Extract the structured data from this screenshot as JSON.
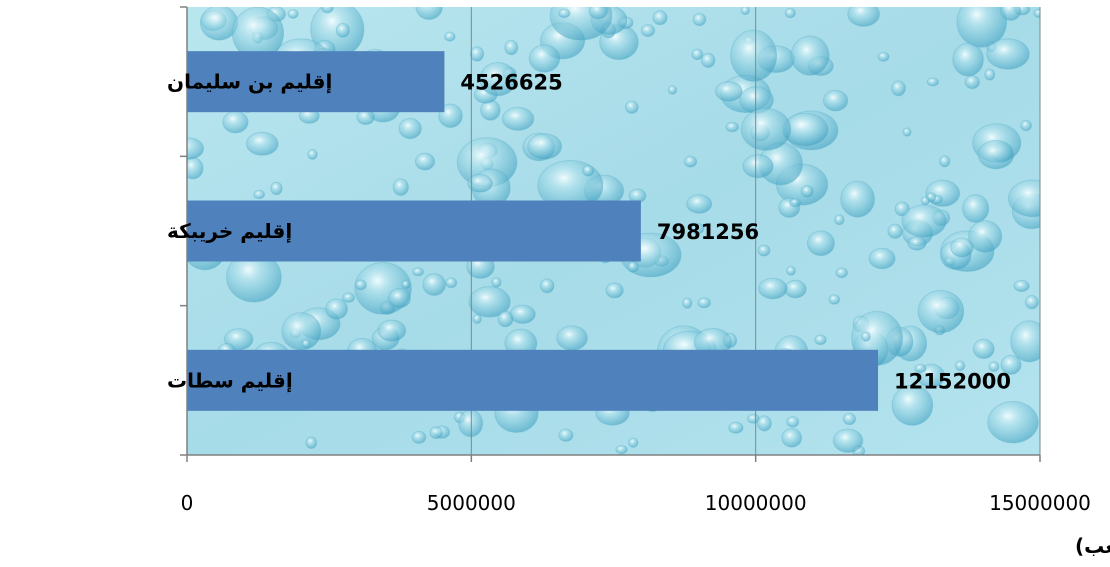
{
  "chart_data": {
    "type": "bar",
    "orientation": "horizontal",
    "categories": [
      "إقليم بن سليمان",
      "إقليم خريبكة",
      "إقليم سطات"
    ],
    "values": [
      4526625,
      7981256,
      12152000
    ],
    "value_labels": [
      "4526625",
      "7981256",
      "12152000"
    ],
    "xlabel": "الإستهلاك ( بالمتر مكعب)",
    "ylabel": "",
    "xlim": [
      0,
      15000000
    ],
    "xticks": [
      0,
      5000000,
      10000000,
      15000000
    ],
    "xtick_labels": [
      "0",
      "5000000",
      "10000000",
      "15000000"
    ],
    "grid": "vertical",
    "legend": "none",
    "bar_color": "#4f81bd",
    "plot_background": "water-droplets-light-cyan"
  }
}
